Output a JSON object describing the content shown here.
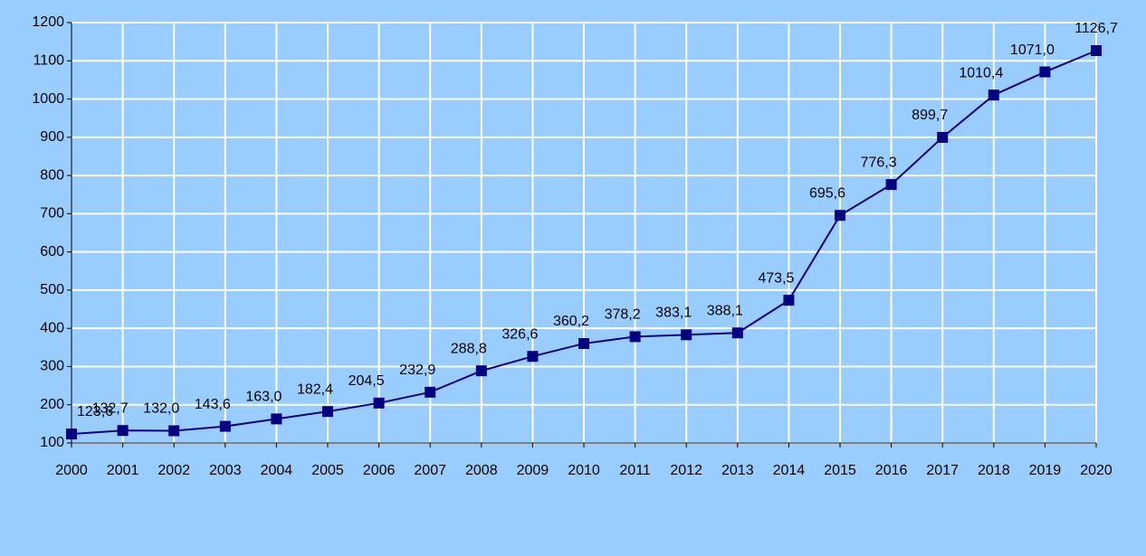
{
  "chart_data": {
    "type": "line",
    "categories": [
      "2000",
      "2001",
      "2002",
      "2003",
      "2004",
      "2005",
      "2006",
      "2007",
      "2008",
      "2009",
      "2010",
      "2011",
      "2012",
      "2013",
      "2014",
      "2015",
      "2016",
      "2017",
      "2018",
      "2019",
      "2020"
    ],
    "series": [
      {
        "color": "#000080",
        "values": [
          123.6,
          132.7,
          132.0,
          143.6,
          163.0,
          182.4,
          204.5,
          232.9,
          288.8,
          326.6,
          360.2,
          378.2,
          383.1,
          388.1,
          473.5,
          695.6,
          776.3,
          899.7,
          1010.4,
          1071.0,
          1126.7
        ],
        "value_labels": [
          "123,6",
          "132,7",
          "132,0",
          "143,6",
          "163,0",
          "182,4",
          "204,5",
          "232,9",
          "288,8",
          "326,6",
          "360,2",
          "378,2",
          "383,1",
          "388,1",
          "473,5",
          "695,6",
          "776,3",
          "899,7",
          "1010,4",
          "1071,0",
          "1126,7"
        ]
      }
    ],
    "ylim": [
      100,
      1200
    ],
    "yticks": [
      100,
      200,
      300,
      400,
      500,
      600,
      700,
      800,
      900,
      1000,
      1100,
      1200
    ],
    "grid": true
  }
}
